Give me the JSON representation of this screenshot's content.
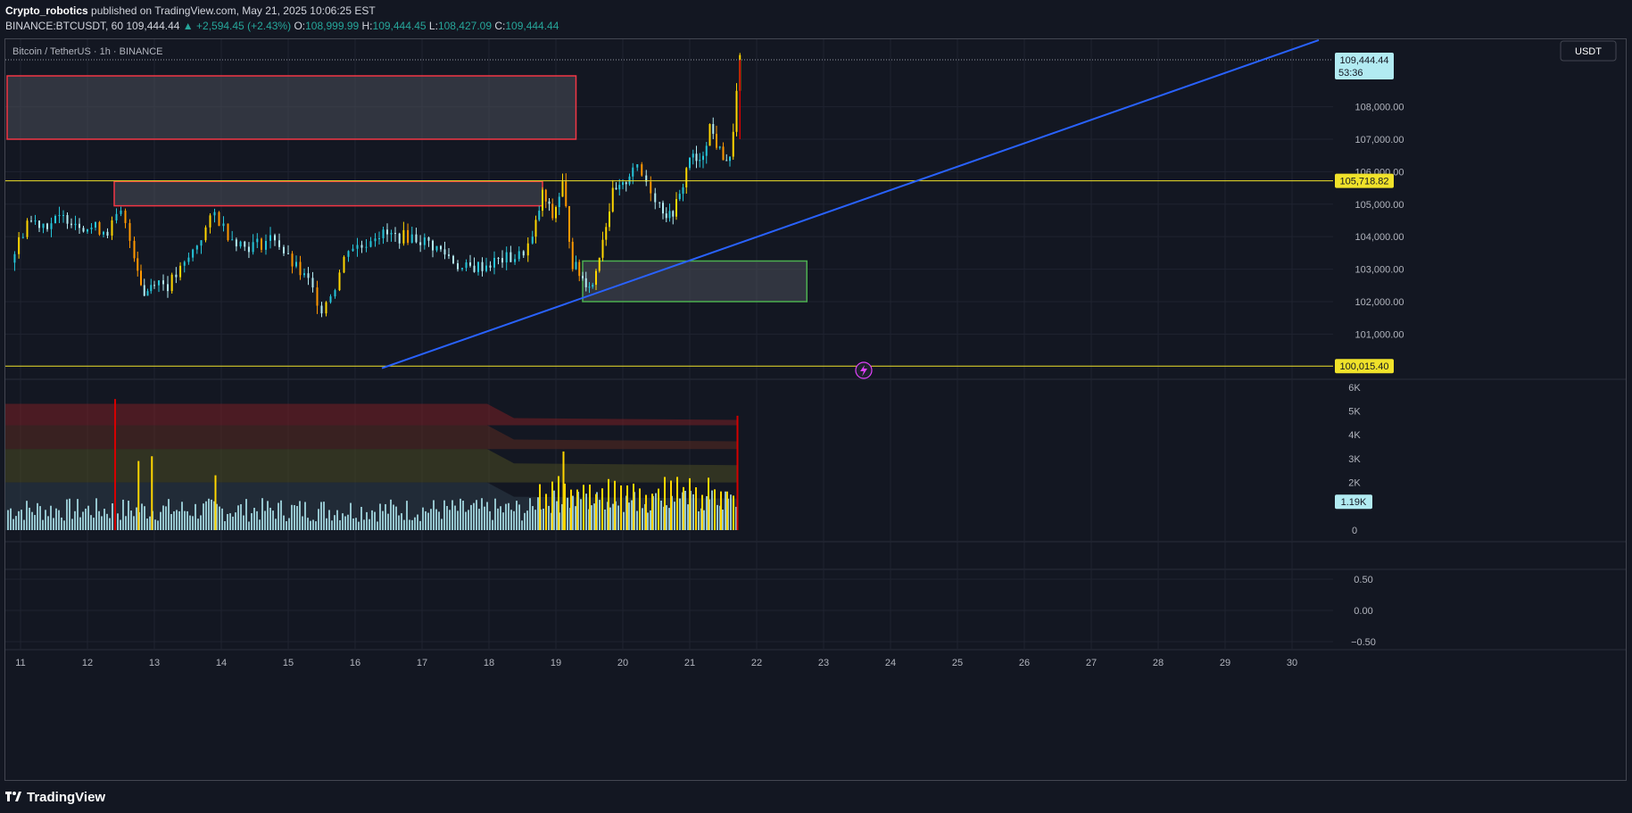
{
  "header": {
    "author": "Crypto_robotics",
    "published_text": "published on TradingView.com, May 21, 2025 10:06:25 EST",
    "symbol": "BINANCE:BTCUSDT, 60",
    "last_price": "109,444.44",
    "change_arrow": "▲",
    "change": "+2,594.45 (+2.43%)",
    "o_label": "O:",
    "o_value": "108,999.99",
    "h_label": "H:",
    "h_value": "109,444.45",
    "l_label": "L:",
    "l_value": "108,427.09",
    "c_label": "C:",
    "c_value": "109,444.44"
  },
  "legend_title": "Bitcoin / TetherUS · 1h · BINANCE",
  "currency_button": "USDT",
  "footer": {
    "brand": "TradingView",
    "logo_icon": "tradingview-logo-icon"
  },
  "colors": {
    "background": "#131722",
    "up": "#26c6da",
    "down": "#b2ebf2",
    "hline": "#f0e22a",
    "trendline": "#2962ff",
    "supply_zone": "#f23645",
    "demand_zone": "#4caf50",
    "volume_normal": "#b2ebf2",
    "volume_high": "#ffd600",
    "volume_climax": "#d50000"
  },
  "chart_data": {
    "type": "candlestick",
    "price_axis": {
      "ticks": [
        101000,
        102000,
        103000,
        104000,
        105000,
        106000,
        107000,
        108000
      ],
      "tick_labels": [
        "101,000.00",
        "102,000.00",
        "103,000.00",
        "104,000.00",
        "105,000.00",
        "106,000.00",
        "107,000.00",
        "108,000.00"
      ],
      "range": [
        99850,
        110850
      ]
    },
    "time_axis": {
      "labels": [
        "11",
        "12",
        "13",
        "14",
        "15",
        "16",
        "17",
        "18",
        "19",
        "20",
        "21",
        "22",
        "23",
        "24",
        "25",
        "26",
        "27",
        "28",
        "29",
        "30"
      ]
    },
    "price_labels": [
      {
        "name": "last",
        "value": "109,444.44",
        "sub": "53:36"
      },
      {
        "name": "level-1",
        "value": "105,718.82"
      },
      {
        "name": "level-2",
        "value": "100,015.40"
      }
    ],
    "horizontal_levels": [
      110300,
      105718.82,
      100015.4
    ],
    "trendline": {
      "from": {
        "day": 16.4,
        "price": 99950
      },
      "to": {
        "day": 30.4,
        "price": 110050
      }
    },
    "zones": [
      {
        "name": "supply-zone-upper",
        "kind": "supply",
        "from_day": 10.8,
        "to_day": 19.3,
        "low": 107000,
        "high": 108950
      },
      {
        "name": "supply-zone-lower",
        "kind": "supply",
        "from_day": 12.4,
        "to_day": 18.8,
        "low": 104950,
        "high": 105700
      },
      {
        "name": "demand-zone",
        "kind": "demand",
        "from_day": 19.4,
        "to_day": 22.75,
        "low": 102000,
        "high": 103250
      }
    ],
    "close_series": [
      {
        "day": 10.85,
        "close": 103200
      },
      {
        "day": 11.1,
        "close": 104500
      },
      {
        "day": 11.4,
        "close": 104400
      },
      {
        "day": 11.7,
        "close": 104600
      },
      {
        "day": 12.0,
        "close": 104300
      },
      {
        "day": 12.3,
        "close": 104200
      },
      {
        "day": 12.5,
        "close": 104700
      },
      {
        "day": 12.7,
        "close": 103500
      },
      {
        "day": 12.85,
        "close": 102200
      },
      {
        "day": 13.0,
        "close": 102700
      },
      {
        "day": 13.2,
        "close": 102500
      },
      {
        "day": 13.45,
        "close": 103100
      },
      {
        "day": 13.7,
        "close": 104000
      },
      {
        "day": 13.9,
        "close": 104700
      },
      {
        "day": 14.1,
        "close": 104100
      },
      {
        "day": 14.35,
        "close": 103700
      },
      {
        "day": 14.6,
        "close": 103800
      },
      {
        "day": 14.8,
        "close": 104000
      },
      {
        "day": 15.0,
        "close": 103300
      },
      {
        "day": 15.3,
        "close": 102600
      },
      {
        "day": 15.5,
        "close": 101800
      },
      {
        "day": 15.7,
        "close": 102500
      },
      {
        "day": 15.9,
        "close": 103700
      },
      {
        "day": 16.1,
        "close": 103700
      },
      {
        "day": 16.3,
        "close": 104100
      },
      {
        "day": 16.6,
        "close": 104000
      },
      {
        "day": 16.85,
        "close": 104000
      },
      {
        "day": 17.1,
        "close": 103800
      },
      {
        "day": 17.4,
        "close": 103400
      },
      {
        "day": 17.6,
        "close": 103000
      },
      {
        "day": 17.9,
        "close": 103100
      },
      {
        "day": 18.2,
        "close": 103300
      },
      {
        "day": 18.45,
        "close": 103400
      },
      {
        "day": 18.65,
        "close": 103900
      },
      {
        "day": 18.8,
        "close": 105300
      },
      {
        "day": 18.95,
        "close": 104600
      },
      {
        "day": 19.1,
        "close": 105600
      },
      {
        "day": 19.25,
        "close": 103200
      },
      {
        "day": 19.4,
        "close": 102700
      },
      {
        "day": 19.55,
        "close": 102500
      },
      {
        "day": 19.7,
        "close": 104000
      },
      {
        "day": 19.85,
        "close": 105300
      },
      {
        "day": 20.0,
        "close": 105500
      },
      {
        "day": 20.15,
        "close": 106200
      },
      {
        "day": 20.35,
        "close": 105700
      },
      {
        "day": 20.55,
        "close": 105000
      },
      {
        "day": 20.7,
        "close": 104600
      },
      {
        "day": 20.85,
        "close": 105200
      },
      {
        "day": 21.0,
        "close": 106500
      },
      {
        "day": 21.15,
        "close": 106200
      },
      {
        "day": 21.3,
        "close": 107400
      },
      {
        "day": 21.45,
        "close": 106600
      },
      {
        "day": 21.6,
        "close": 106300
      },
      {
        "day": 21.75,
        "close": 109444.44
      }
    ],
    "volume_axis": {
      "ticks": [
        "6K",
        "5K",
        "4K",
        "3K",
        "2K",
        "0"
      ],
      "last_label": "1.19K"
    },
    "volume_bands": [
      {
        "name": "extreme",
        "color": "#7a1f25",
        "from": 4400,
        "to": 5300
      },
      {
        "name": "high",
        "color": "#5a2a20",
        "from": 3400,
        "to": 4400
      },
      {
        "name": "elevated",
        "color": "#4a4a22",
        "from": 2000,
        "to": 3400
      },
      {
        "name": "normal",
        "color": "#2e3c48",
        "from": 0,
        "to": 2000
      }
    ],
    "volume_spikes": [
      {
        "day": 12.4,
        "value": 5500,
        "kind": "climax"
      },
      {
        "day": 12.75,
        "value": 2900,
        "kind": "high"
      },
      {
        "day": 12.95,
        "value": 3100,
        "kind": "high"
      },
      {
        "day": 13.9,
        "value": 2300,
        "kind": "high"
      },
      {
        "day": 19.1,
        "value": 3300,
        "kind": "high"
      },
      {
        "day": 21.7,
        "value": 4800,
        "kind": "climax"
      }
    ],
    "oscillator_axis": {
      "ticks": [
        "0.50",
        "0.00",
        "−0.50"
      ]
    }
  }
}
